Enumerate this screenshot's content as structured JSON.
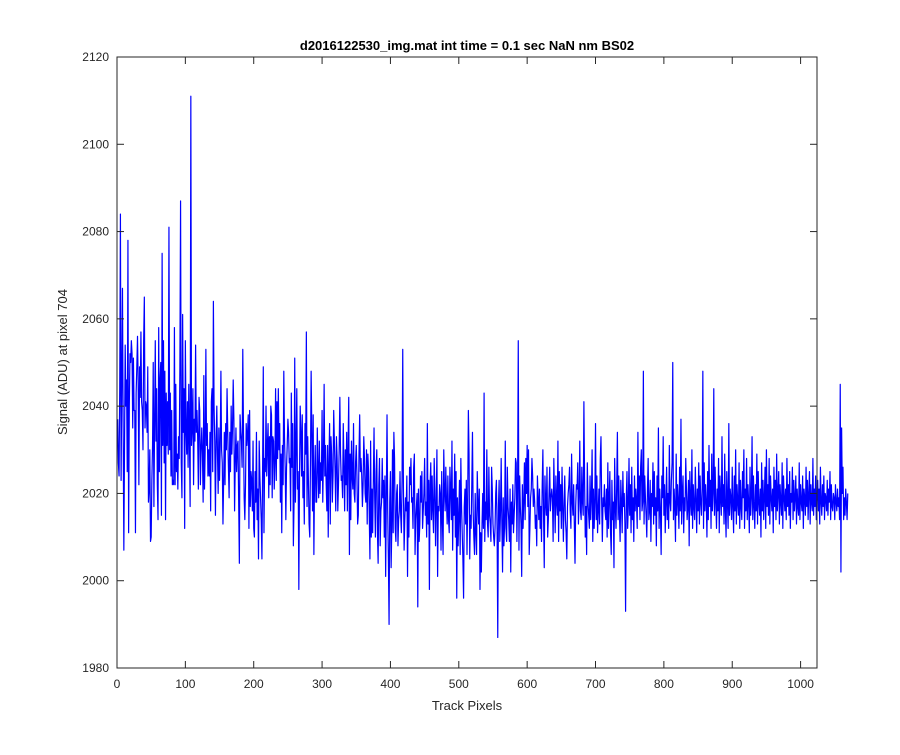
{
  "chart_data": {
    "type": "line",
    "title": "d2016122530_img.mat int time = 0.1 sec  NaN nm BS02",
    "xlabel": "Track Pixels",
    "ylabel": "Signal (ADU) at pixel 704",
    "xlim": [
      0,
      1024
    ],
    "ylim": [
      1980,
      2120
    ],
    "xticks": [
      0,
      100,
      200,
      300,
      400,
      500,
      600,
      700,
      800,
      900,
      1000
    ],
    "yticks": [
      1980,
      2000,
      2020,
      2040,
      2060,
      2080,
      2100,
      2120
    ],
    "grid": false,
    "series_color": "#0000ff",
    "series": [
      {
        "x_start": 1,
        "x_step": 1,
        "values": [
          2037,
          2027,
          2024,
          2044,
          2084,
          2023,
          2046,
          2067,
          2035,
          2007,
          2031,
          2054,
          2040,
          2046,
          2025,
          2078,
          2011,
          2040,
          2052,
          2050,
          2055,
          2052,
          2035,
          2051,
          2039,
          2039,
          2011,
          2043,
          2049,
          2056,
          2045,
          2022,
          2049,
          2042,
          2057,
          2041,
          2039,
          2030,
          2055,
          2065,
          2035,
          2041,
          2040,
          2034,
          2049,
          2018,
          2021,
          2030,
          2009,
          2010,
          2023,
          2031,
          2050,
          2017,
          2036,
          2055,
          2032,
          2044,
          2022,
          2014,
          2058,
          2025,
          2046,
          2050,
          2015,
          2075,
          2031,
          2055,
          2027,
          2048,
          2014,
          2043,
          2031,
          2041,
          2029,
          2081,
          2030,
          2043,
          2024,
          2039,
          2022,
          2023,
          2022,
          2058,
          2022,
          2045,
          2025,
          2029,
          2021,
          2033,
          2028,
          2049,
          2087,
          2027,
          2019,
          2061,
          2034,
          2044,
          2012,
          2055,
          2035,
          2029,
          2041,
          2026,
          2045,
          2032,
          2017,
          2111,
          2031,
          2035,
          2044,
          2022,
          2037,
          2032,
          2054,
          2034,
          2039,
          2033,
          2021,
          2042,
          2039,
          2022,
          2030,
          2035,
          2029,
          2018,
          2047,
          2021,
          2030,
          2053,
          2031,
          2036,
          2024,
          2030,
          2024,
          2034,
          2016,
          2041,
          2044,
          2025,
          2064,
          2040,
          2032,
          2015,
          2032,
          2040,
          2029,
          2020,
          2035,
          2023,
          2031,
          2048,
          2030,
          2027,
          2013,
          2023,
          2034,
          2022,
          2036,
          2030,
          2044,
          2034,
          2026,
          2019,
          2034,
          2025,
          2040,
          2029,
          2035,
          2046,
          2037,
          2016,
          2027,
          2035,
          2025,
          2031,
          2032,
          2018,
          2004,
          2038,
          2034,
          2032,
          2026,
          2053,
          2035,
          2019,
          2014,
          2022,
          2036,
          2031,
          2034,
          2038,
          2012,
          2039,
          2017,
          2025,
          2023,
          2016,
          2032,
          2012,
          2010,
          2025,
          2018,
          2034,
          2014,
          2021,
          2005,
          2032,
          2024,
          2019,
          2014,
          2005,
          2026,
          2049,
          2011,
          2028,
          2025,
          2040,
          2024,
          2031,
          2036,
          2019,
          2033,
          2022,
          2040,
          2038,
          2019,
          2033,
          2032,
          2021,
          2027,
          2044,
          2023,
          2041,
          2028,
          2044,
          2030,
          2036,
          2018,
          2029,
          2011,
          2031,
          2022,
          2048,
          2033,
          2026,
          2014,
          2026,
          2031,
          2037,
          2034,
          2027,
          2028,
          2016,
          2043,
          2026,
          2036,
          2008,
          2018,
          2051,
          2018,
          2030,
          2044,
          2021,
          2025,
          1998,
          2024,
          2040,
          2034,
          2024,
          2038,
          2019,
          2025,
          2013,
          2036,
          2029,
          2057,
          2017,
          2033,
          2023,
          2013,
          2010,
          2027,
          2048,
          2034,
          2016,
          2038,
          2006,
          2024,
          2031,
          2018,
          2018,
          2035,
          2026,
          2019,
          2032,
          2020,
          2027,
          2023,
          2039,
          2018,
          2028,
          2045,
          2024,
          2031,
          2022,
          2016,
          2031,
          2010,
          2027,
          2036,
          2013,
          2033,
          2029,
          2018,
          2024,
          2039,
          2032,
          2025,
          2016,
          2033,
          2028,
          2016,
          2022,
          2030,
          2042,
          2029,
          2023,
          2024,
          2019,
          2036,
          2026,
          2016,
          2030,
          2022,
          2034,
          2016,
          2030,
          2042,
          2006,
          2029,
          2014,
          2032,
          2024,
          2021,
          2036,
          2020,
          2018,
          2027,
          2031,
          2024,
          2013,
          2015,
          2029,
          2038,
          2025,
          2028,
          2024,
          2017,
          2022,
          2033,
          2028,
          2020,
          2018,
          2030,
          2013,
          2029,
          2025,
          2015,
          2005,
          2032,
          2010,
          2021,
          2011,
          2023,
          2035,
          2019,
          2010,
          2025,
          2030,
          2011,
          2004,
          2022,
          2028,
          2008,
          2016,
          2018,
          2028,
          2019,
          2023,
          2010,
          2024,
          2001,
          2019,
          2038,
          2016,
          2005,
          1990,
          2018,
          2025,
          2003,
          2012,
          2030,
          2011,
          2034,
          2028,
          2012,
          2009,
          2020,
          2022,
          2008,
          2014,
          2016,
          2025,
          2015,
          2011,
          2023,
          2053,
          2021,
          2007,
          2014,
          2019,
          2016,
          2024,
          2001,
          2018,
          2010,
          2026,
          2022,
          2028,
          2018,
          2019,
          2012,
          2026,
          2029,
          2006,
          2014,
          2017,
          2020,
          1994,
          2021,
          2009,
          2013,
          2024,
          2018,
          2025,
          2012,
          2016,
          2020,
          2028,
          2015,
          2018,
          2010,
          2036,
          2013,
          2023,
          1998,
          2022,
          2027,
          2014,
          2024,
          2016,
          2011,
          2028,
          2021,
          2008,
          2018,
          2030,
          2001,
          2017,
          2016,
          2022,
          2020,
          2007,
          2025,
          2014,
          2006,
          2030,
          2021,
          2016,
          2026,
          2018,
          2013,
          2024,
          2014,
          2011,
          2026,
          2021,
          2014,
          2032,
          2007,
          2021,
          2015,
          2029,
          2010,
          2025,
          1996,
          2019,
          2008,
          2015,
          2023,
          2006,
          2028,
          2017,
          2011,
          2005,
          1996,
          2017,
          2021,
          2013,
          2023,
          2006,
          2018,
          2039,
          2029,
          2005,
          2015,
          2012,
          2022,
          2034,
          2016,
          2010,
          2006,
          2020,
          2011,
          2006,
          2025,
          2018,
          2013,
          2021,
          1998,
          2011,
          2002,
          2013,
          2020,
          2012,
          2043,
          2009,
          2018,
          2014,
          2030,
          2013,
          2010,
          2026,
          2015,
          2013,
          2009,
          2026,
          2021,
          2013,
          2010,
          2008,
          2012,
          2020,
          2023,
          2012,
          1987,
          2017,
          2023,
          2009,
          2016,
          2028,
          2013,
          2002,
          2019,
          2008,
          2013,
          2032,
          2012,
          2009,
          2026,
          2017,
          2014,
          2009,
          2021,
          2002,
          2018,
          2013,
          2022,
          2011,
          2015,
          2019,
          2028,
          2027,
          2009,
          2022,
          2055,
          2007,
          2024,
          2017,
          2013,
          2001,
          2022,
          2012,
          2018,
          2027,
          2014,
          2028,
          2020,
          2031,
          2017,
          2030,
          2006,
          2012,
          2019,
          2021,
          2028,
          2024,
          2017,
          2021,
          2018,
          2012,
          2015,
          2008,
          2024,
          2019,
          2014,
          2021,
          2012,
          2017,
          2009,
          2022,
          2030,
          2015,
          2003,
          2024,
          2018,
          2015,
          2026,
          2010,
          2014,
          2020,
          2026,
          2016,
          2019,
          2021,
          2019,
          2009,
          2028,
          2019,
          2011,
          2024,
          2018,
          2015,
          2032,
          2009,
          2025,
          2016,
          2022,
          2012,
          2026,
          2017,
          2009,
          2018,
          2024,
          2014,
          2011,
          2005,
          2017,
          2020,
          2022,
          2026,
          2016,
          2012,
          2029,
          2018,
          2015,
          2022,
          2013,
          2004,
          2017,
          2022,
          2021,
          2027,
          2013,
          2019,
          2032,
          2016,
          2014,
          2026,
          2018,
          2015,
          2041,
          2023,
          2010,
          2017,
          2006,
          2027,
          2018,
          2015,
          2012,
          2024,
          2014,
          2019,
          2030,
          2009,
          2021,
          2012,
          2018,
          2036,
          2014,
          2024,
          2011,
          2016,
          2021,
          2013,
          2028,
          2033,
          2018,
          2009,
          2019,
          2017,
          2022,
          2016,
          2014,
          2021,
          2010,
          2027,
          2012,
          2019,
          2025,
          2011,
          2006,
          2023,
          2014,
          2018,
          2003,
          2028,
          2017,
          2012,
          2022,
          2034,
          2014,
          2024,
          2015,
          2009,
          2023,
          2018,
          2011,
          2025,
          2017,
          2020,
          2013,
          1993,
          2019,
          2025,
          2012,
          2017,
          2028,
          2015,
          2022,
          2011,
          2026,
          2014,
          2019,
          2009,
          2024,
          2016,
          2021,
          2018,
          2012,
          2034,
          2017,
          2024,
          2014,
          2026,
          2030,
          2016,
          2018,
          2048,
          2013,
          2024,
          2019,
          2015,
          2010,
          2021,
          2028,
          2014,
          2016,
          2023,
          2009,
          2020,
          2017,
          2027,
          2013,
          2025,
          2015,
          2019,
          2008,
          2024,
          2016,
          2035,
          2012,
          2021,
          2016,
          2006,
          2024,
          2019,
          2033,
          2015,
          2022,
          2011,
          2018,
          2026,
          2014,
          2020,
          2012,
          2031,
          2018,
          2016,
          2023,
          2027,
          2050,
          2014,
          2021,
          2017,
          2009,
          2029,
          2015,
          2022,
          2018,
          2012,
          2026,
          2016,
          2037,
          2013,
          2020,
          2024,
          2011,
          2019,
          2016,
          2028,
          2021,
          2014,
          2017,
          2023,
          2008,
          2025,
          2018,
          2015,
          2030,
          2012,
          2022,
          2017,
          2014,
          2026,
          2019,
          2011,
          2021,
          2016,
          2027,
          2013,
          2024,
          2018,
          2015,
          2021,
          2048,
          2012,
          2027,
          2016,
          2022,
          2018,
          2010,
          2025,
          2014,
          2031,
          2017,
          2023,
          2012,
          2029,
          2016,
          2020,
          2044,
          2015,
          2026,
          2018,
          2012,
          2021,
          2016,
          2028,
          2011,
          2024,
          2019,
          2015,
          2033,
          2017,
          2022,
          2013,
          2029,
          2016,
          2010,
          2025,
          2018,
          2012,
          2036,
          2015,
          2021,
          2019,
          2014,
          2026,
          2017,
          2011,
          2024,
          2016,
          2030,
          2013,
          2022,
          2018,
          2015,
          2027,
          2012,
          2023,
          2017,
          2014,
          2025,
          2019,
          2030,
          2012,
          2021,
          2016,
          2028,
          2014,
          2022,
          2018,
          2011,
          2026,
          2015,
          2019,
          2033,
          2014,
          2024,
          2017,
          2012,
          2022,
          2016,
          2029,
          2013,
          2025,
          2018,
          2015,
          2021,
          2010,
          2027,
          2016,
          2023,
          2014,
          2019,
          2026,
          2012,
          2030,
          2017,
          2022,
          2015,
          2028,
          2013,
          2024,
          2019,
          2016,
          2021,
          2011,
          2026,
          2017,
          2023,
          2014,
          2029,
          2016,
          2020,
          2025,
          2013,
          2022,
          2018,
          2015,
          2027,
          2012,
          2024,
          2019,
          2016,
          2021,
          2014,
          2028,
          2017,
          2022,
          2015,
          2025,
          2012,
          2020,
          2018,
          2026,
          2014,
          2023,
          2016,
          2019,
          2024,
          2013,
          2021,
          2017,
          2015,
          2027,
          2014,
          2022,
          2018,
          2016,
          2024,
          2012,
          2021,
          2019,
          2015,
          2026,
          2017,
          2023,
          2014,
          2020,
          2025,
          2013,
          2022,
          2018,
          2016,
          2028,
          2015,
          2021,
          2017,
          2024,
          2014,
          2019,
          2023,
          2016,
          2021,
          2013,
          2026,
          2018,
          2015,
          2022,
          2017,
          2024,
          2014,
          2020,
          2019,
          2016,
          2023,
          2015,
          2021,
          2018,
          2025,
          2014,
          2022,
          2017,
          2016,
          2020,
          2019,
          2014,
          2022,
          2018,
          2016,
          2021,
          2017,
          2019,
          2014,
          2045,
          2002,
          2035,
          2020,
          2026,
          2014,
          2019,
          2015,
          2021,
          2018,
          2014,
          2020
        ]
      }
    ]
  }
}
